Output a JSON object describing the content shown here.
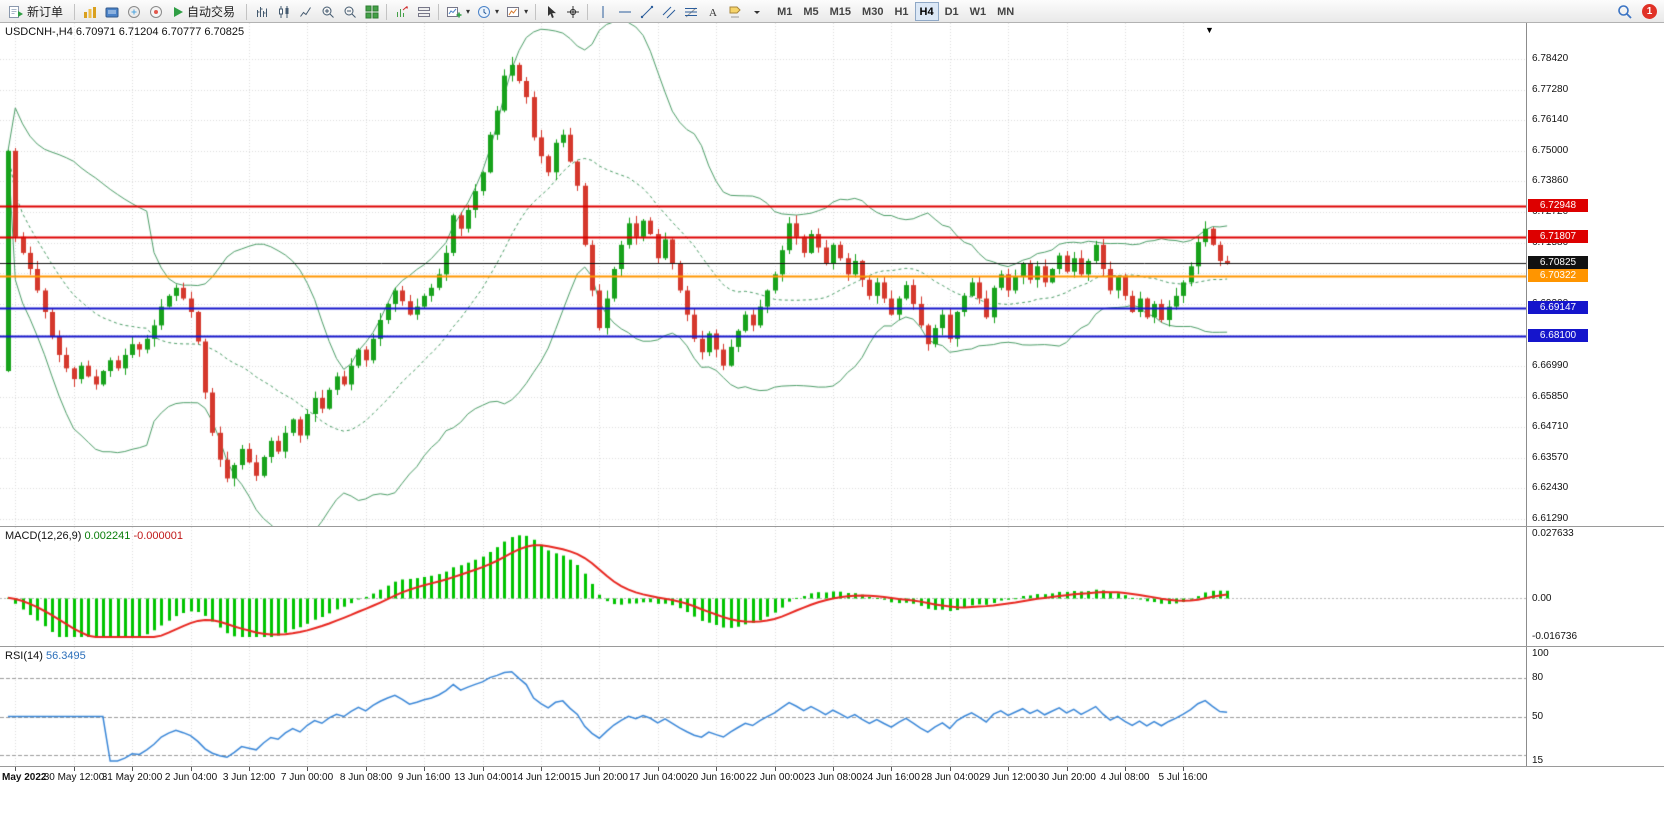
{
  "toolbar": {
    "new_order_label": "新订单",
    "autotrading_label": "自动交易",
    "timeframes": [
      "M1",
      "M5",
      "M15",
      "M30",
      "H1",
      "H4",
      "D1",
      "W1",
      "MN"
    ],
    "active_timeframe": "H4",
    "notification_badge": "1"
  },
  "chart": {
    "symbol_period": "USDCNH-,H4",
    "ohlc": "6.70971 6.71204 6.70777 6.70825",
    "colors": {
      "bull": "#17a21b",
      "bear": "#d5382c",
      "bands": "#4d9e68",
      "grid": "#dcdcdc",
      "macd_hist": "#00c400",
      "macd_signal": "#e8261f",
      "rsi_line": "#3a87d8",
      "level_dash": "#9a9a9a"
    },
    "price_axis": {
      "max": 6.7976,
      "min": 6.6103,
      "labels": [
        {
          "p": 6.7842,
          "t": "6.78420"
        },
        {
          "p": 6.7728,
          "t": "6.77280"
        },
        {
          "p": 6.7614,
          "t": "6.76140"
        },
        {
          "p": 6.75,
          "t": "6.75000"
        },
        {
          "p": 6.7386,
          "t": "6.73860"
        },
        {
          "p": 6.7272,
          "t": "6.72720"
        },
        {
          "p": 6.7158,
          "t": "6.71580"
        },
        {
          "p": 6.7044,
          "t": "6.70440"
        },
        {
          "p": 6.693,
          "t": "6.69300"
        },
        {
          "p": 6.6816,
          "t": "6.68160"
        },
        {
          "p": 6.6699,
          "t": "6.66990"
        },
        {
          "p": 6.6585,
          "t": "6.65850"
        },
        {
          "p": 6.6471,
          "t": "6.64710"
        },
        {
          "p": 6.6357,
          "t": "6.63570"
        },
        {
          "p": 6.6243,
          "t": "6.62430"
        },
        {
          "p": 6.6129,
          "t": "6.61290"
        }
      ]
    },
    "levels": [
      {
        "price": 6.72948,
        "label": "6.72948",
        "color": "#dd0000",
        "width": 2
      },
      {
        "price": 6.71807,
        "label": "6.71807",
        "color": "#dd0000",
        "width": 2
      },
      {
        "price": 6.70825,
        "label": "6.70825",
        "color": "#111111",
        "width": 1
      },
      {
        "price": 6.70322,
        "label": "6.70322",
        "color": "#ff9500",
        "width": 2
      },
      {
        "price": 6.69147,
        "label": "6.69147",
        "color": "#1515cc",
        "width": 2
      },
      {
        "price": 6.681,
        "label": "6.68100",
        "color": "#1515cc",
        "width": 2
      }
    ],
    "chart_data": {
      "type": "candlestick",
      "symbol": "USDCNH",
      "timeframe": "H4",
      "open_rule": "previous_close",
      "first_open": 6.668,
      "bollinger": {
        "period": 20,
        "deviation": 2
      },
      "closes": [
        6.75,
        6.718,
        6.712,
        6.706,
        6.698,
        6.69,
        6.681,
        6.674,
        6.669,
        6.665,
        6.67,
        6.666,
        6.663,
        6.668,
        6.672,
        6.669,
        6.674,
        6.678,
        6.676,
        6.68,
        6.685,
        6.692,
        6.696,
        6.699,
        6.695,
        6.69,
        6.679,
        6.66,
        6.645,
        6.635,
        6.628,
        6.633,
        6.639,
        6.634,
        6.629,
        6.636,
        6.642,
        6.638,
        6.645,
        6.65,
        6.644,
        6.652,
        6.658,
        6.654,
        6.661,
        6.666,
        6.663,
        6.67,
        6.676,
        6.672,
        6.68,
        6.687,
        6.693,
        6.698,
        6.694,
        6.689,
        6.692,
        6.696,
        6.699,
        6.704,
        6.712,
        6.726,
        6.721,
        6.728,
        6.735,
        6.742,
        6.756,
        6.765,
        6.778,
        6.782,
        6.776,
        6.77,
        6.755,
        6.748,
        6.742,
        6.753,
        6.756,
        6.746,
        6.737,
        6.715,
        6.698,
        6.684,
        6.695,
        6.706,
        6.715,
        6.723,
        6.718,
        6.724,
        6.719,
        6.71,
        6.717,
        6.708,
        6.698,
        6.689,
        6.68,
        6.675,
        6.682,
        6.676,
        6.67,
        6.677,
        6.683,
        6.689,
        6.685,
        6.692,
        6.698,
        6.704,
        6.713,
        6.723,
        6.718,
        6.712,
        6.719,
        6.714,
        6.708,
        6.715,
        6.71,
        6.704,
        6.709,
        6.702,
        6.696,
        6.701,
        6.695,
        6.689,
        6.695,
        6.7,
        6.693,
        6.685,
        6.678,
        6.684,
        6.689,
        6.68,
        6.69,
        6.696,
        6.701,
        6.695,
        6.688,
        6.699,
        6.704,
        6.698,
        6.703,
        6.708,
        6.702,
        6.707,
        6.701,
        6.706,
        6.711,
        6.705,
        6.71,
        6.704,
        6.709,
        6.715,
        6.706,
        6.698,
        6.703,
        6.696,
        6.69,
        6.695,
        6.688,
        6.693,
        6.687,
        6.692,
        6.696,
        6.701,
        6.707,
        6.716,
        6.721,
        6.715,
        6.709,
        6.70825
      ]
    },
    "time_axis": {
      "first_tick_bar": 1,
      "bars_per_tick": 8,
      "labels": [
        "May 2022",
        "30 May 12:00",
        "31 May 20:00",
        "2 Jun 04:00",
        "3 Jun 12:00",
        "7 Jun 00:00",
        "8 Jun 08:00",
        "9 Jun 16:00",
        "13 Jun 04:00",
        "14 Jun 12:00",
        "15 Jun 20:00",
        "17 Jun 04:00",
        "20 Jun 16:00",
        "22 Jun 00:00",
        "23 Jun 08:00",
        "24 Jun 16:00",
        "28 Jun 04:00",
        "29 Jun 12:00",
        "30 Jun 20:00",
        "4 Jul 08:00",
        "5 Jul 16:00"
      ]
    }
  },
  "macd": {
    "name": "MACD(12,26,9)",
    "value_main": "0.002241",
    "value_signal": "-0.000001",
    "fast": 12,
    "slow": 26,
    "signal": 9,
    "axis_max": {
      "v": 0.027633,
      "t": "0.027633"
    },
    "axis_zero": "0.00",
    "axis_min": {
      "v": -0.016736,
      "t": "-0.016736"
    }
  },
  "rsi": {
    "name": "RSI(14)",
    "value": "56.3495",
    "period": 14,
    "scale_max": 100,
    "scale_min": 15,
    "levels": [
      80,
      50,
      20
    ],
    "axis_labels": [
      {
        "v": 100,
        "t": "100"
      },
      {
        "v": 80,
        "t": "80"
      },
      {
        "v": 50,
        "t": "50"
      },
      {
        "v": 15,
        "t": "15"
      }
    ]
  }
}
